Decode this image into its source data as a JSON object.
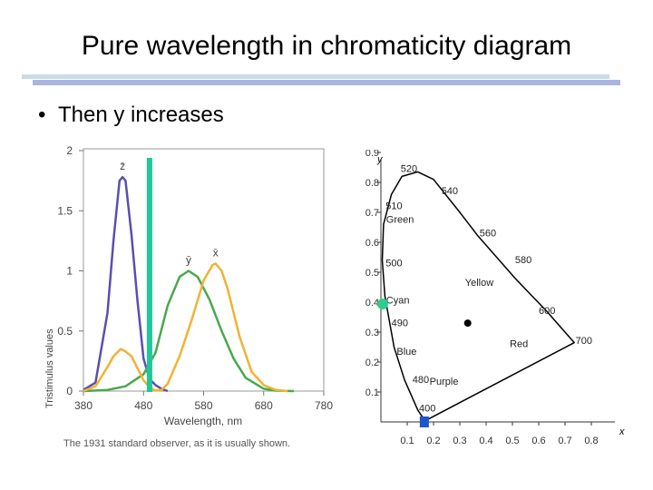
{
  "slide": {
    "title": "Pure wavelength in chromaticity diagram",
    "bullet": "Then y increases"
  },
  "colors": {
    "z_curve": "#5b4fae",
    "y_curve": "#4aa84e",
    "x_curve": "#f2b233",
    "marker_line": "#1fc79a",
    "cyan_point": "#2ecc8f",
    "blue_point": "#1f55c8",
    "rule_light": "#c9dde8",
    "rule_dark": "#aab4e0"
  },
  "chart_data": [
    {
      "type": "line",
      "title": "",
      "xlabel": "Wavelength, nm",
      "ylabel": "Tristimulus values",
      "xlim": [
        380,
        780
      ],
      "ylim": [
        0,
        2
      ],
      "x_ticks": [
        "380",
        "480",
        "580",
        "680",
        "780"
      ],
      "y_ticks": [
        "0",
        "0.5",
        "1",
        "1.5",
        "2"
      ],
      "grid": false,
      "caption": "The 1931 standard observer, as it is usually shown.",
      "series": [
        {
          "name": "z̄",
          "x": [
            380,
            400,
            420,
            430,
            440,
            445,
            450,
            460,
            470,
            480,
            490,
            500,
            510,
            520
          ],
          "y": [
            0.01,
            0.07,
            0.65,
            1.25,
            1.75,
            1.78,
            1.75,
            1.3,
            0.75,
            0.27,
            0.1,
            0.05,
            0.02,
            0.0
          ]
        },
        {
          "name": "ȳ",
          "x": [
            380,
            420,
            450,
            480,
            500,
            520,
            540,
            555,
            570,
            590,
            610,
            630,
            650,
            680,
            700,
            730
          ],
          "y": [
            0.0,
            0.01,
            0.04,
            0.14,
            0.32,
            0.71,
            0.95,
            1.0,
            0.95,
            0.76,
            0.5,
            0.27,
            0.11,
            0.02,
            0.004,
            0.0
          ]
        },
        {
          "name": "x̄",
          "x": [
            380,
            400,
            420,
            430,
            442,
            450,
            460,
            470,
            480,
            490,
            500,
            510,
            520,
            540,
            560,
            580,
            595,
            600,
            610,
            620,
            640,
            660,
            680,
            700,
            720
          ],
          "y": [
            0.0,
            0.04,
            0.2,
            0.29,
            0.35,
            0.33,
            0.29,
            0.19,
            0.09,
            0.03,
            0.005,
            0.01,
            0.06,
            0.29,
            0.59,
            0.92,
            1.05,
            1.06,
            1.0,
            0.85,
            0.45,
            0.16,
            0.05,
            0.01,
            0.0
          ]
        }
      ],
      "marker_wavelength": 490
    },
    {
      "type": "line",
      "title": "",
      "xlabel": "x",
      "ylabel": "y",
      "xlim": [
        0,
        0.8
      ],
      "ylim": [
        0,
        0.9
      ],
      "x_ticks": [
        "0.1",
        "0.2",
        "0.3",
        "0.4",
        "0.5",
        "0.6",
        "0.7",
        "0.8"
      ],
      "y_ticks": [
        "0.1",
        "0.2",
        "0.3",
        "0.4",
        "0.5",
        "0.6",
        "0.7",
        "0.8",
        "0.9"
      ],
      "locus": {
        "x": [
          0.17,
          0.155,
          0.14,
          0.12,
          0.09,
          0.05,
          0.015,
          0.005,
          0.01,
          0.04,
          0.08,
          0.14,
          0.2,
          0.3,
          0.37,
          0.45,
          0.51,
          0.575,
          0.63,
          0.69,
          0.735
        ],
        "y": [
          0.005,
          0.02,
          0.04,
          0.08,
          0.14,
          0.25,
          0.42,
          0.54,
          0.66,
          0.76,
          0.82,
          0.835,
          0.81,
          0.7,
          0.62,
          0.54,
          0.48,
          0.42,
          0.37,
          0.31,
          0.265
        ]
      },
      "wavelength_labels": [
        {
          "text": "520",
          "x": 0.075,
          "y": 0.835
        },
        {
          "text": "540",
          "x": 0.23,
          "y": 0.76
        },
        {
          "text": "510",
          "x": 0.018,
          "y": 0.71
        },
        {
          "text": "560",
          "x": 0.375,
          "y": 0.62
        },
        {
          "text": "500",
          "x": 0.018,
          "y": 0.52
        },
        {
          "text": "580",
          "x": 0.51,
          "y": 0.53
        },
        {
          "text": "490",
          "x": 0.04,
          "y": 0.32
        },
        {
          "text": "600",
          "x": 0.6,
          "y": 0.36
        },
        {
          "text": "700",
          "x": 0.74,
          "y": 0.26
        },
        {
          "text": "480",
          "x": 0.12,
          "y": 0.13
        },
        {
          "text": "400",
          "x": 0.145,
          "y": 0.035
        }
      ],
      "region_labels": [
        {
          "text": "Green",
          "x": 0.02,
          "y": 0.665
        },
        {
          "text": "Yellow",
          "x": 0.32,
          "y": 0.455
        },
        {
          "text": "Cyan",
          "x": 0.02,
          "y": 0.395
        },
        {
          "text": "Red",
          "x": 0.49,
          "y": 0.25
        },
        {
          "text": "Blue",
          "x": 0.06,
          "y": 0.225
        },
        {
          "text": "Purple",
          "x": 0.185,
          "y": 0.125
        }
      ],
      "white_point": {
        "x": 0.33,
        "y": 0.33
      },
      "cyan_point": {
        "x": 0.0,
        "y": 0.4
      },
      "blue_point": {
        "x": 0.165,
        "y": 0.0
      }
    }
  ]
}
